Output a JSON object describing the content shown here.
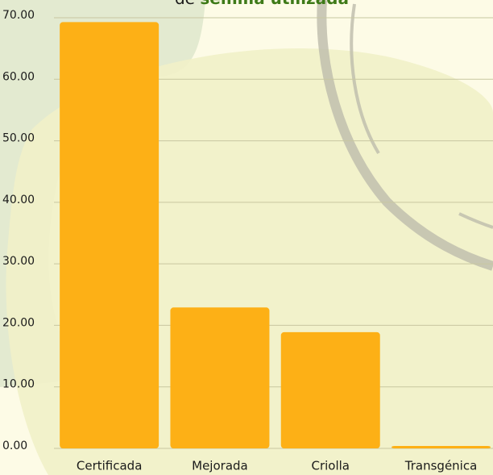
{
  "chart_data": {
    "type": "bar",
    "title_prefix": "de",
    "title_emphasis": "semilla utilizada",
    "categories": [
      "Certificada",
      "Mejorada",
      "Criolla",
      "Transgénica"
    ],
    "values": [
      69.3,
      22.9,
      18.9,
      0.4
    ],
    "color": "#fdb016",
    "ylim": [
      0,
      70
    ],
    "yticks": [
      {
        "value": 0,
        "label": "0.00"
      },
      {
        "value": 10,
        "label": "10.00"
      },
      {
        "value": 20,
        "label": "20.00"
      },
      {
        "value": 30,
        "label": "30.00"
      },
      {
        "value": 40,
        "label": "40.00"
      },
      {
        "value": 50,
        "label": "50.00"
      },
      {
        "value": 60,
        "label": "60.00"
      },
      {
        "value": 70,
        "label": "70.00"
      }
    ],
    "grid": true
  }
}
